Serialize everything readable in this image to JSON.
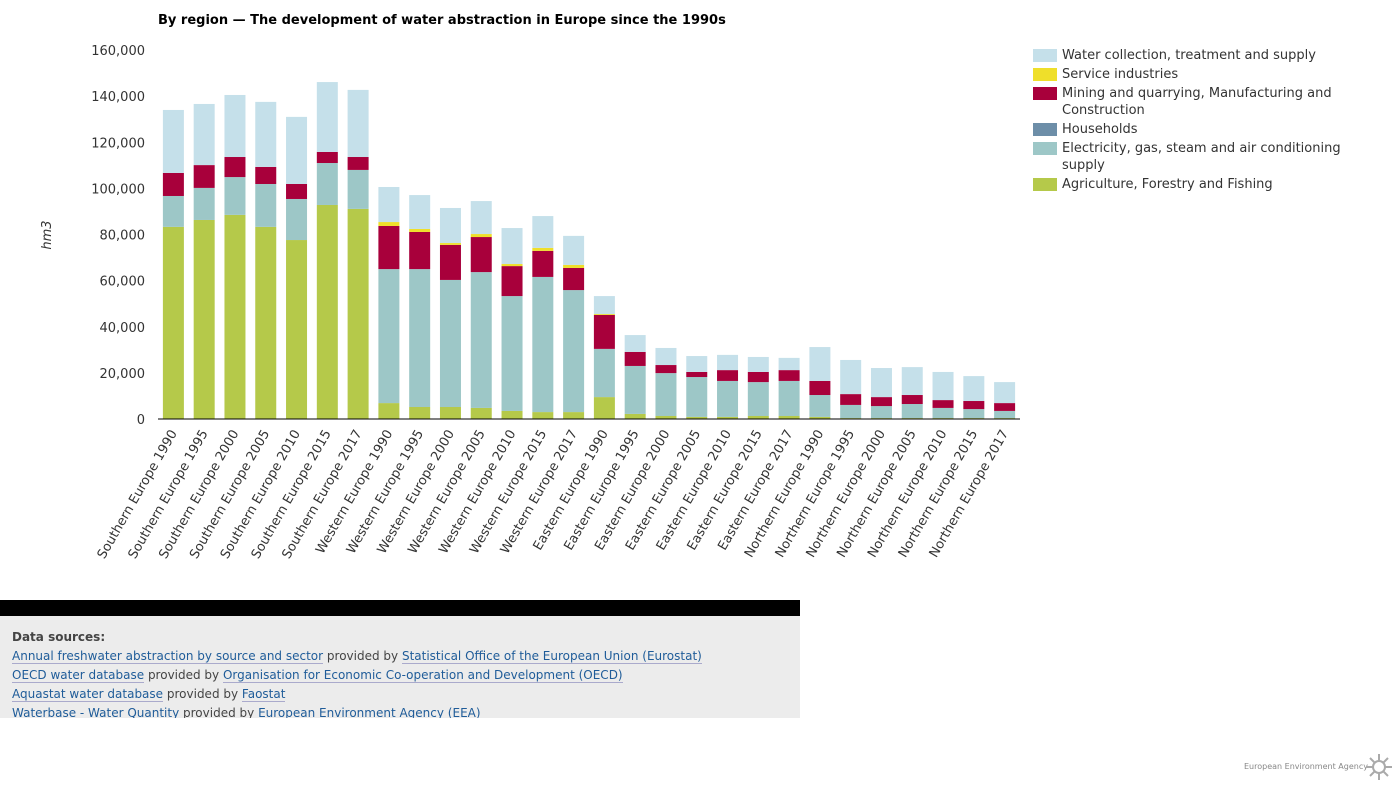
{
  "chart_data": {
    "type": "stacked-bar",
    "title": "By region — The development of water abstraction in Europe since the 1990s",
    "y_label": "hm3",
    "categories": [
      "Southern Europe 1990",
      "Southern Europe 1995",
      "Southern Europe 2000",
      "Southern Europe 2005",
      "Southern Europe 2010",
      "Southern Europe 2015",
      "Southern Europe 2017",
      "Western Europe 1990",
      "Western Europe 1995",
      "Western Europe 2000",
      "Western Europe 2005",
      "Western Europe 2010",
      "Western Europe 2015",
      "Western Europe 2017",
      "Eastern Europe 1990",
      "Eastern Europe 1995",
      "Eastern Europe 2000",
      "Eastern Europe 2005",
      "Eastern Europe 2010",
      "Eastern Europe 2015",
      "Eastern Europe 2017",
      "Northern Europe 1990",
      "Northern Europe 1995",
      "Northern Europe 2000",
      "Northern Europe 2005",
      "Northern Europe 2010",
      "Northern Europe 2015",
      "Northern Europe 2017"
    ],
    "series": [
      {
        "name": "Agriculture, Forestry and Fishing",
        "color": "#b5c94a",
        "values": [
          83300,
          86300,
          88500,
          83300,
          77600,
          92800,
          91100,
          6900,
          5200,
          5200,
          4800,
          3500,
          3000,
          3000,
          9500,
          2200,
          1300,
          900,
          900,
          1300,
          1300,
          900,
          400,
          400,
          400,
          400,
          400,
          400
        ]
      },
      {
        "name": "Electricity, gas, steam and air conditioning supply",
        "color": "#9dc7c7",
        "values": [
          13400,
          13900,
          16400,
          18600,
          17800,
          18200,
          16900,
          58100,
          59800,
          55100,
          58900,
          49800,
          58600,
          52900,
          20900,
          20800,
          18600,
          17300,
          15600,
          14700,
          15200,
          9500,
          5700,
          5200,
          6100,
          4400,
          3900,
          3100
        ]
      },
      {
        "name": "Households",
        "color": "#6d8ea8",
        "values": [
          0,
          0,
          0,
          0,
          0,
          0,
          0,
          0,
          0,
          0,
          0,
          0,
          0,
          0,
          0,
          0,
          0,
          0,
          0,
          0,
          0,
          0,
          0,
          0,
          0,
          0,
          0,
          0
        ]
      },
      {
        "name": "Mining and quarrying, Manufacturing and Construction",
        "color": "#a8003b",
        "values": [
          10000,
          9900,
          8700,
          7400,
          6500,
          4800,
          5600,
          18700,
          16100,
          15200,
          15200,
          13000,
          11300,
          9600,
          14700,
          6100,
          3500,
          2200,
          4700,
          4400,
          4700,
          6100,
          4700,
          3900,
          3900,
          3400,
          3500,
          3400
        ]
      },
      {
        "name": "Service industries",
        "color": "#efdf2a",
        "values": [
          0,
          0,
          0,
          0,
          0,
          0,
          0,
          1700,
          1300,
          800,
          1300,
          900,
          1300,
          1300,
          400,
          0,
          0,
          0,
          0,
          0,
          0,
          0,
          0,
          0,
          0,
          0,
          0,
          0
        ]
      },
      {
        "name": "Water collection, treatment and supply",
        "color": "#c5e0ea",
        "values": [
          27300,
          26500,
          26900,
          28200,
          29100,
          30300,
          29100,
          15200,
          14700,
          15200,
          14300,
          15600,
          13800,
          12600,
          7800,
          7300,
          7400,
          6900,
          6600,
          6500,
          5300,
          14700,
          14800,
          12600,
          12100,
          12200,
          10800,
          9100
        ]
      }
    ],
    "ylim": [
      0,
      160000
    ],
    "yticks": [
      0,
      {
        "value": 20000,
        "label": "20,000"
      },
      {
        "value": 40000,
        "label": "40,000"
      },
      {
        "value": 60000,
        "label": "60,000"
      },
      {
        "value": 80000,
        "label": "80,000"
      },
      {
        "value": 100000,
        "label": "100,000"
      },
      {
        "value": 120000,
        "label": "120,000"
      },
      {
        "value": 140000,
        "label": "140,000"
      },
      {
        "value": 160000,
        "label": "160,000"
      }
    ]
  },
  "footer": {
    "heading": "Data sources:",
    "sources": [
      {
        "dataset": "Annual freshwater abstraction by source and sector",
        "connector": "provided by",
        "provider": "Statistical Office of the European Union (Eurostat)"
      },
      {
        "dataset": "OECD water database",
        "connector": "provided by",
        "provider": "Organisation for Economic Co-operation and Development (OECD)"
      },
      {
        "dataset": "Aquastat water database",
        "connector": "provided by",
        "provider": "Faostat"
      },
      {
        "dataset": "Waterbase - Water Quantity",
        "connector": "provided by",
        "provider": "European Environment Agency (EEA)"
      }
    ]
  },
  "logo": "European Environment Agency"
}
